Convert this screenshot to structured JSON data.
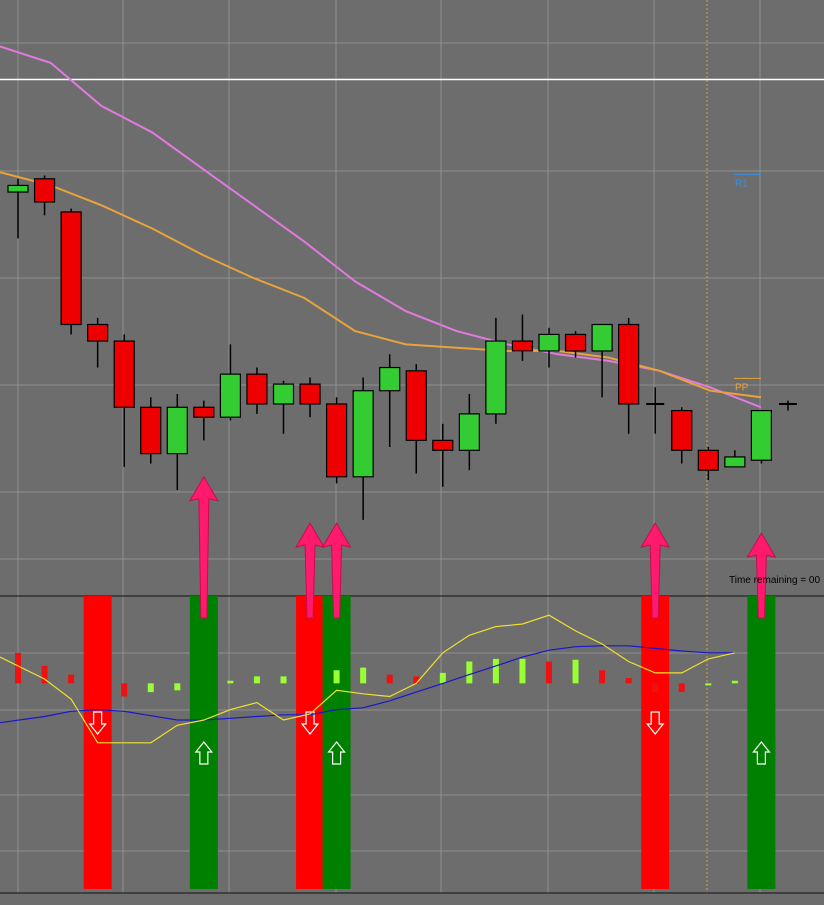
{
  "chart_data": [
    {
      "type": "candlestick",
      "overlays": [
        {
          "label": "",
          "color": "#e07ae0",
          "values": [
            1.253,
            1.2505,
            1.244,
            1.24,
            1.2345,
            1.229,
            1.2235,
            1.2175,
            1.213,
            1.21,
            1.208,
            1.2065,
            1.2055,
            1.204,
            1.2015,
            1.1985
          ]
        },
        {
          "label": "PP",
          "color": "#e8a33a",
          "values": [
            1.234,
            1.232,
            1.229,
            1.2255,
            1.2215,
            1.218,
            1.215,
            1.21,
            1.208,
            1.2075,
            1.207,
            1.207,
            1.206,
            1.204,
            1.201,
            1.2
          ]
        }
      ],
      "horizontal_levels": [
        {
          "label": "",
          "value": 1.248,
          "color": "#ffffff"
        }
      ],
      "level_labels": [
        {
          "label": "R1",
          "value": 1.232,
          "color": "#3d8fe0"
        },
        {
          "label": "PP",
          "value": 1.2012,
          "color": "#e8a33a"
        }
      ],
      "candles": [
        {
          "o": 1.231,
          "h": 1.233,
          "l": 1.224,
          "c": 1.232
        },
        {
          "o": 1.233,
          "h": 1.2335,
          "l": 1.2275,
          "c": 1.2295
        },
        {
          "o": 1.228,
          "h": 1.2285,
          "l": 1.2095,
          "c": 1.211
        },
        {
          "o": 1.211,
          "h": 1.212,
          "l": 1.2045,
          "c": 1.2085
        },
        {
          "o": 1.2085,
          "h": 1.2095,
          "l": 1.1895,
          "c": 1.1985
        },
        {
          "o": 1.1985,
          "h": 1.2,
          "l": 1.19,
          "c": 1.1915
        },
        {
          "o": 1.1915,
          "h": 1.2005,
          "l": 1.186,
          "c": 1.1985
        },
        {
          "o": 1.1985,
          "h": 1.1995,
          "l": 1.1935,
          "c": 1.197
        },
        {
          "o": 1.197,
          "h": 1.208,
          "l": 1.1965,
          "c": 1.2035
        },
        {
          "o": 1.2035,
          "h": 1.2045,
          "l": 1.1975,
          "c": 1.199
        },
        {
          "o": 1.199,
          "h": 1.2025,
          "l": 1.1945,
          "c": 1.202
        },
        {
          "o": 1.202,
          "h": 1.203,
          "l": 1.197,
          "c": 1.199
        },
        {
          "o": 1.199,
          "h": 1.2,
          "l": 1.187,
          "c": 1.188
        },
        {
          "o": 1.188,
          "h": 1.203,
          "l": 1.1815,
          "c": 1.201
        },
        {
          "o": 1.201,
          "h": 1.2065,
          "l": 1.1925,
          "c": 1.2045
        },
        {
          "o": 1.204,
          "h": 1.205,
          "l": 1.1885,
          "c": 1.1935
        },
        {
          "o": 1.1935,
          "h": 1.196,
          "l": 1.1865,
          "c": 1.192
        },
        {
          "o": 1.192,
          "h": 1.2005,
          "l": 1.189,
          "c": 1.1975
        },
        {
          "o": 1.1975,
          "h": 1.212,
          "l": 1.196,
          "c": 1.2085
        },
        {
          "o": 1.2085,
          "h": 1.2125,
          "l": 1.2055,
          "c": 1.207
        },
        {
          "o": 1.207,
          "h": 1.2105,
          "l": 1.2045,
          "c": 1.2095
        },
        {
          "o": 1.2095,
          "h": 1.21,
          "l": 1.206,
          "c": 1.207
        },
        {
          "o": 1.207,
          "h": 1.211,
          "l": 1.2,
          "c": 1.211
        },
        {
          "o": 1.211,
          "h": 1.212,
          "l": 1.1945,
          "c": 1.199
        },
        {
          "o": 1.199,
          "h": 1.2015,
          "l": 1.1945,
          "c": 1.199
        },
        {
          "o": 1.198,
          "h": 1.1985,
          "l": 1.19,
          "c": 1.192
        },
        {
          "o": 1.192,
          "h": 1.1925,
          "l": 1.1875,
          "c": 1.189
        },
        {
          "o": 1.1895,
          "h": 1.192,
          "l": 1.1895,
          "c": 1.191
        },
        {
          "o": 1.1905,
          "h": 1.198,
          "l": 1.19,
          "c": 1.198
        },
        {
          "o": 1.199,
          "h": 1.1995,
          "l": 1.198,
          "c": 1.199
        }
      ],
      "ylim": [
        1.17,
        1.26
      ],
      "signal_arrows": [
        {
          "candle": 7,
          "value": 1.188
        },
        {
          "candle": 11,
          "value": 1.181
        },
        {
          "candle": 12,
          "value": 1.181
        },
        {
          "candle": 24,
          "value": 1.181
        },
        {
          "candle": 28,
          "value": 1.1795
        }
      ]
    },
    {
      "type": "histogram",
      "values": [
        6,
        0,
        -0.3,
        0,
        0,
        0
      ],
      "bars": [
        3.5,
        2.0,
        1.0,
        0,
        -1.5,
        -1.0,
        -0.8,
        0,
        0.3,
        0.8,
        0.8,
        0,
        1.5,
        1.8,
        1.0,
        0.8,
        1.2,
        2.5,
        2.8,
        2.8,
        2.5,
        2.7,
        1.5,
        0.6,
        -1.0,
        -1.0,
        -0.1,
        0.3,
        0
      ],
      "bar_colors": [
        "red",
        "red",
        "red",
        "none",
        "red",
        "green",
        "green",
        "none",
        "green",
        "green",
        "green",
        "none",
        "green",
        "green",
        "red",
        "red",
        "green",
        "green",
        "green",
        "green",
        "red",
        "green",
        "red",
        "red",
        "red",
        "red",
        "green",
        "green",
        "none"
      ],
      "signal_line": [
        3,
        0.5,
        -1.8,
        -6.8,
        -6.8,
        -6.8,
        -4.8,
        -4.2,
        -3.0,
        -2.2,
        -4.2,
        -3.5,
        -0.8,
        -1.2,
        -1.5,
        0.0,
        3.5,
        5.5,
        6.5,
        6.8,
        7.8,
        6.0,
        4.5,
        2.5,
        1.2,
        1.2,
        2.8,
        3.5
      ],
      "trend_line": [
        -4.5,
        -3.8,
        -3.2,
        -3.0,
        -3.2,
        -3.7,
        -4.2,
        -4.2,
        -4.0,
        -3.8,
        -3.6,
        -3.6,
        -3.0,
        -2.8,
        -2.0,
        -1.0,
        0.0,
        1.0,
        2.0,
        3.0,
        3.8,
        4.2,
        4.3,
        4.3,
        4.0,
        3.7,
        3.5,
        3.5
      ],
      "ylim": [
        -24,
        10
      ],
      "signal_bands": [
        {
          "candle": 3,
          "direction": "down",
          "color": "#ff0000"
        },
        {
          "candle": 7,
          "direction": "up",
          "color": "#008000"
        },
        {
          "candle": 11,
          "direction": "down",
          "color": "#ff0000"
        },
        {
          "candle": 12,
          "direction": "up",
          "color": "#008000"
        },
        {
          "candle": 24,
          "direction": "down",
          "color": "#ff0000"
        },
        {
          "candle": 28,
          "direction": "up",
          "color": "#008000"
        }
      ],
      "caption": "Time remaining = 00"
    }
  ],
  "colors": {
    "background": "#6d6d6d",
    "grid": "#909090",
    "bull": "#33cc33",
    "bear": "#ee0000",
    "hist_up": "#99ff33",
    "hist_down": "#ee1111",
    "signal_yellow": "#f0e030",
    "signal_blue": "#1818c8",
    "arrow_magenta": "#ff1a6e"
  }
}
